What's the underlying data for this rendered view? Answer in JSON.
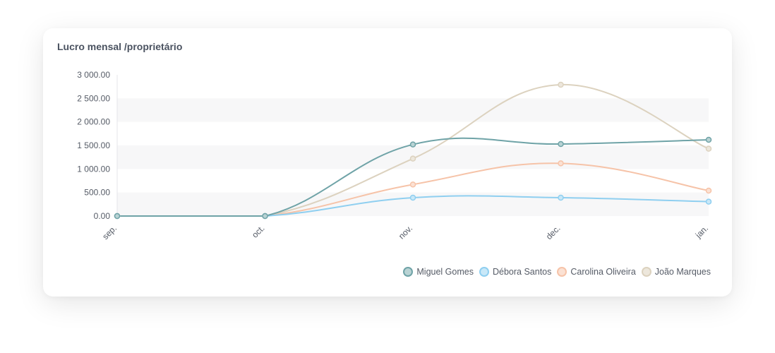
{
  "card": {
    "title": "Lucro mensal /proprietário"
  },
  "chart_data": {
    "type": "line",
    "title": "Lucro mensal /proprietário",
    "categories": [
      "sep.",
      "oct.",
      "nov.",
      "dec.",
      "jan."
    ],
    "y_ticks": [
      "0.00",
      "500.00",
      "1 000.00",
      "1 500.00",
      "2 000.00",
      "2 500.00",
      "3 000.00"
    ],
    "ylim": [
      0,
      3000
    ],
    "grid": "alternating horizontal bands",
    "legend_position": "bottom-right",
    "series": [
      {
        "name": "Miguel Gomes",
        "values": [
          0,
          0,
          1520,
          1530,
          1620
        ],
        "color": "#6fa3a7",
        "fill": "#b9d3d4"
      },
      {
        "name": "Débora Santos",
        "values": [
          0,
          0,
          390,
          390,
          305
        ],
        "color": "#8fcff0",
        "fill": "#c9e8f8"
      },
      {
        "name": "Carolina Oliveira",
        "values": [
          0,
          0,
          670,
          1120,
          540
        ],
        "color": "#f6c3a8",
        "fill": "#fbe1d3"
      },
      {
        "name": "João Marques",
        "values": [
          0,
          0,
          1220,
          2790,
          1430
        ],
        "color": "#dcd2bf",
        "fill": "#ede7dc"
      }
    ]
  }
}
